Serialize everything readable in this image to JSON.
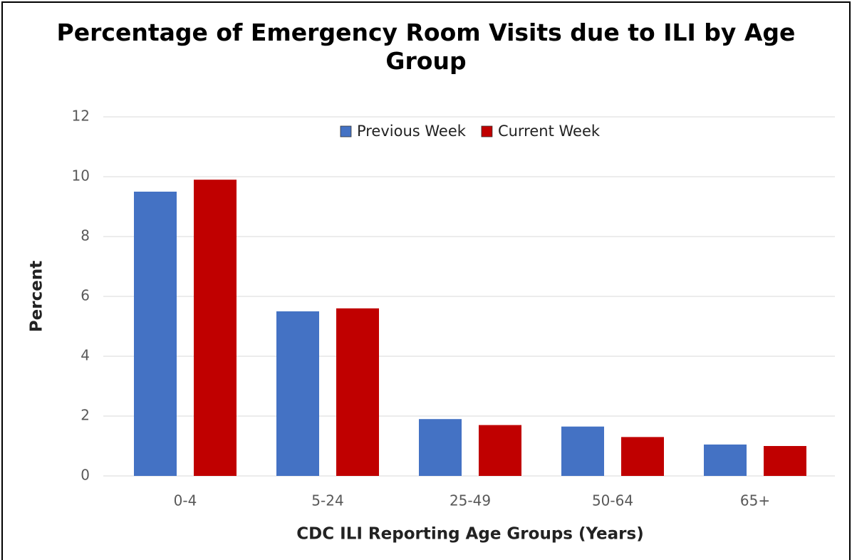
{
  "chart_data": {
    "type": "bar",
    "title": "Percentage of Emergency Room Visits due to ILI by Age Group",
    "x_label": "CDC ILI Reporting Age Groups (Years)",
    "y_label": "Percent",
    "categories": [
      "0-4",
      "5-24",
      "25-49",
      "50-64",
      "65+"
    ],
    "series": [
      {
        "name": "Previous Week",
        "color": "#4472c4",
        "values": [
          9.5,
          5.5,
          1.9,
          1.65,
          1.05
        ]
      },
      {
        "name": "Current Week",
        "color": "#c00000",
        "values": [
          9.9,
          5.6,
          1.7,
          1.3,
          1.0
        ]
      }
    ],
    "ylim": [
      0,
      12
    ],
    "yticks": [
      0,
      2,
      4,
      6,
      8,
      10,
      12
    ],
    "grid": true,
    "legend": "top"
  }
}
